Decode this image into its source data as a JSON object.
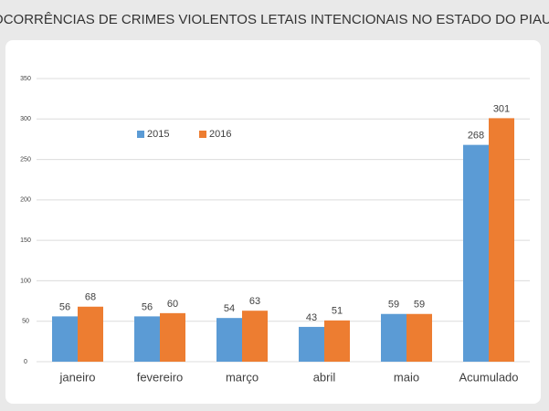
{
  "chart_data": {
    "type": "bar",
    "title": "OCORRÊNCIAS DE CRIMES VIOLENTOS LETAIS INTENCIONAIS NO ESTADO DO PIAUÍ",
    "categories": [
      "janeiro",
      "fevereiro",
      "março",
      "abril",
      "maio",
      "Acumulado"
    ],
    "series": [
      {
        "name": "2015",
        "color": "#5b9bd5",
        "values": [
          56,
          56,
          54,
          43,
          59,
          268
        ]
      },
      {
        "name": "2016",
        "color": "#ed7d31",
        "values": [
          68,
          60,
          63,
          51,
          59,
          301
        ]
      }
    ],
    "ylim": [
      0,
      350
    ],
    "yticks": [
      0,
      50,
      100,
      150,
      200,
      250,
      300,
      350
    ],
    "grid": true
  }
}
